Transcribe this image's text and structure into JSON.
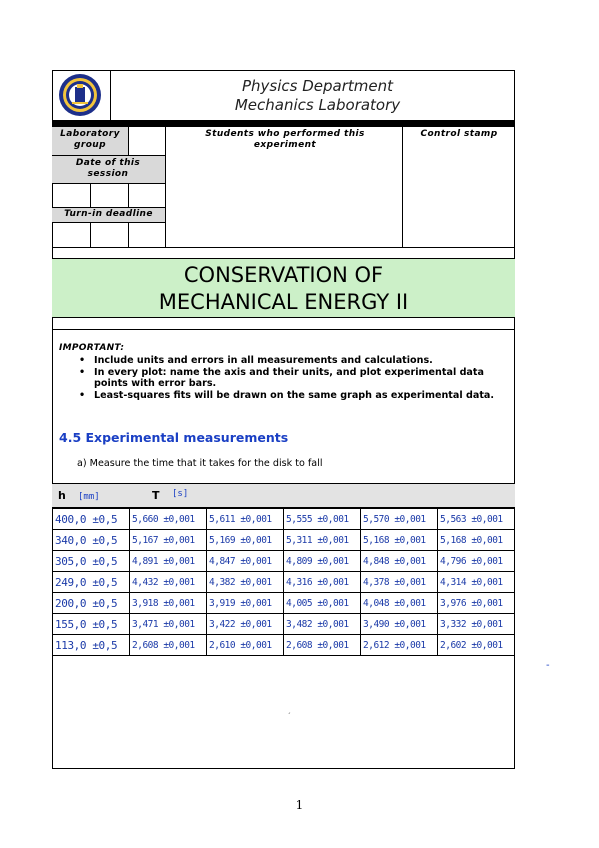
{
  "header": {
    "department": "Physics Department",
    "lab": "Mechanics Laboratory",
    "logo": "university-seal"
  },
  "form": {
    "lab_group_label": "Laboratory group",
    "students_label": "Students who performed this experiment",
    "control_stamp_label": "Control stamp",
    "date_label": "Date of this session",
    "deadline_label": "Turn-in deadline"
  },
  "title": {
    "line1": "CONSERVATION OF",
    "line2": "MECHANICAL ENERGY II",
    "band_color": "#ccf0c8"
  },
  "important": {
    "heading": "IMPORTANT:",
    "bullets": [
      "Include units and errors in all measurements and calculations.",
      "In every plot: name the axis and their units, and plot experimental data points with error bars.",
      "Least-squares fits will be drawn on the same graph as experimental data."
    ]
  },
  "section": {
    "heading": "4.5 Experimental measurements",
    "instruction": "a)  Measure the time that it takes for the disk to fall"
  },
  "table": {
    "h_label": "h",
    "h_unit": "[mm]",
    "t_label": "T",
    "t_unit": "[s]",
    "rows": [
      [
        "400,0 ±0,5",
        "5,660 ±0,001",
        "5,611 ±0,001",
        "5,555 ±0,001",
        "5,570 ±0,001",
        "5,563 ±0,001"
      ],
      [
        "340,0 ±0,5",
        "5,167 ±0,001",
        "5,169 ±0,001",
        "5,311 ±0,001",
        "5,168 ±0,001",
        "5,168 ±0,001"
      ],
      [
        "305,0 ±0,5",
        "4,891 ±0,001",
        "4,847 ±0,001",
        "4,809 ±0,001",
        "4,848 ±0,001",
        "4,796 ±0,001"
      ],
      [
        "249,0 ±0,5",
        "4,432 ±0,001",
        "4,382 ±0,001",
        "4,316 ±0,001",
        "4,378 ±0,001",
        "4,314 ±0,001"
      ],
      [
        "200,0 ±0,5",
        "3,918 ±0,001",
        "3,919 ±0,001",
        "4,005 ±0,001",
        "4,048 ±0,001",
        "3,976 ±0,001"
      ],
      [
        "155,0 ±0,5",
        "3,471 ±0,001",
        "3,422 ±0,001",
        "3,482 ±0,001",
        "3,490 ±0,001",
        "3,332 ±0,001"
      ],
      [
        "113,0 ±0,5",
        "2,608 ±0,001",
        "2,610 ±0,001",
        "2,608 ±0,001",
        "2,612 ±0,001",
        "2,602 ±0,001"
      ]
    ],
    "ink_color": "#1b3aa8"
  },
  "footer": {
    "page_number": "1"
  }
}
